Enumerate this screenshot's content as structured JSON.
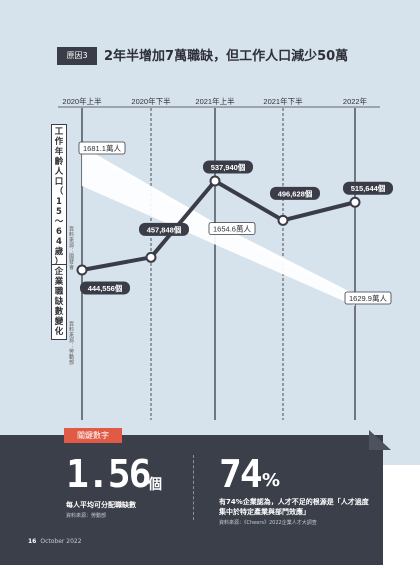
{
  "header": {
    "badge": "原因3",
    "title": "2年半增加7萬職缺，但工作人口減少50萬"
  },
  "chart_data": {
    "type": "line",
    "categories": [
      "2020年上半",
      "2020年下半",
      "2021年上半",
      "2021年下半",
      "2022年"
    ],
    "series": [
      {
        "name": "工作年齡人口（15～64歲）",
        "unit": "萬人",
        "points": [
          {
            "x": "2020年上半",
            "value": 1681.1,
            "label": "1681.1萬人"
          },
          {
            "x": "2021年上半",
            "value": 1654.6,
            "label": "1654.6萬人"
          },
          {
            "x": "2022年",
            "value": 1629.9,
            "label": "1629.9萬人"
          }
        ],
        "color": "#ffffff"
      },
      {
        "name": "企業職缺數變化",
        "unit": "個",
        "points": [
          {
            "x": "2020年上半",
            "value": 444556,
            "label": "444,556個"
          },
          {
            "x": "2020年下半",
            "value": 457848,
            "label": "457,848個"
          },
          {
            "x": "2021年上半",
            "value": 537940,
            "label": "537,940個"
          },
          {
            "x": "2021年下半",
            "value": 496628,
            "label": "496,628個"
          },
          {
            "x": "2022年",
            "value": 515644,
            "label": "515,644個"
          }
        ],
        "color": "#3a3d47"
      }
    ],
    "y_label_1": "工作年齡人口（15～64歲）",
    "y_label_1_source": "資料來源：國發會",
    "y_label_2": "企業職缺數變化",
    "y_label_2_source": "資料來源：勞動部"
  },
  "key_stats": {
    "tag": "關鍵數字",
    "stat1": {
      "number": "1.56",
      "unit": "個",
      "desc": "每人平均可分配職缺數",
      "source": "資料來源：勞動部"
    },
    "stat2": {
      "number": "74",
      "unit": "%",
      "desc": "有74%企業認為，人才不足的根源是「人才過度集中於特定產業與部門效應」",
      "source": "資料來源：《Cheers》2022企業人才大調查"
    }
  },
  "footer": {
    "page": "16",
    "issue": "October 2022"
  },
  "colors": {
    "dark": "#3b3f4a",
    "light_blue": "#d7e3ec",
    "accent_red": "#e05a45"
  }
}
